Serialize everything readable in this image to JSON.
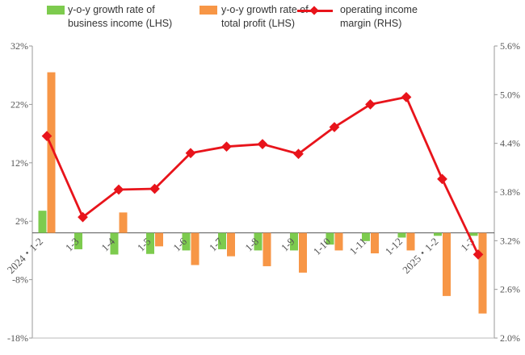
{
  "chart_data": {
    "type": "bar",
    "categories": [
      "2024・1-2",
      "1-3",
      "1-4",
      "1-5",
      "1-6",
      "1-7",
      "1-8",
      "1-9",
      "1-10",
      "1-11",
      "1-12",
      "2025・1-2",
      "1-3"
    ],
    "series": [
      {
        "name": "y-o-y growth rate of business income (LHS)",
        "type": "bar",
        "axis": "left",
        "color": "#7dcb4e",
        "values": [
          3.8,
          -2.8,
          -3.7,
          -3.6,
          -3.0,
          -2.8,
          -3.0,
          -3.0,
          -2.0,
          -1.4,
          -0.8,
          -0.5,
          -0.5
        ]
      },
      {
        "name": "y-o-y growth rate of total profit (LHS)",
        "type": "bar",
        "axis": "left",
        "color": "#f79646",
        "values": [
          27.5,
          0,
          3.5,
          -2.3,
          -5.5,
          -4.0,
          -5.7,
          -6.8,
          -3.0,
          -3.5,
          -3.0,
          -10.8,
          -13.8
        ]
      },
      {
        "name": "operating income margin (RHS)",
        "type": "line",
        "axis": "right",
        "color": "#e8141b",
        "values": [
          4.49,
          3.49,
          3.83,
          3.84,
          4.28,
          4.36,
          4.39,
          4.27,
          4.6,
          4.88,
          4.97,
          3.96,
          3.03
        ]
      }
    ],
    "left_axis": {
      "ticks": [
        "32%",
        "22%",
        "12%",
        "2%",
        "-8%",
        "-18%"
      ],
      "tick_values": [
        32,
        22,
        12,
        2,
        -8,
        -18
      ],
      "range": [
        -18,
        32
      ]
    },
    "right_axis": {
      "ticks": [
        "5.6%",
        "5.0%",
        "4.4%",
        "3.8%",
        "3.2%",
        "2.6%",
        "2.0%"
      ],
      "tick_values": [
        5.6,
        5.0,
        4.4,
        3.8,
        3.2,
        2.6,
        2.0
      ],
      "range": [
        2.0,
        5.6
      ]
    },
    "title": "",
    "xlabel": "",
    "ylabel": "",
    "grid": false,
    "legend_position": "top"
  },
  "legend": [
    {
      "line1": "y-o-y growth rate of",
      "line2": "business income (LHS)"
    },
    {
      "line1": "y-o-y growth rate of",
      "line2": "total profit (LHS)"
    },
    {
      "line1": "operating income",
      "line2": "margin (RHS)"
    }
  ]
}
